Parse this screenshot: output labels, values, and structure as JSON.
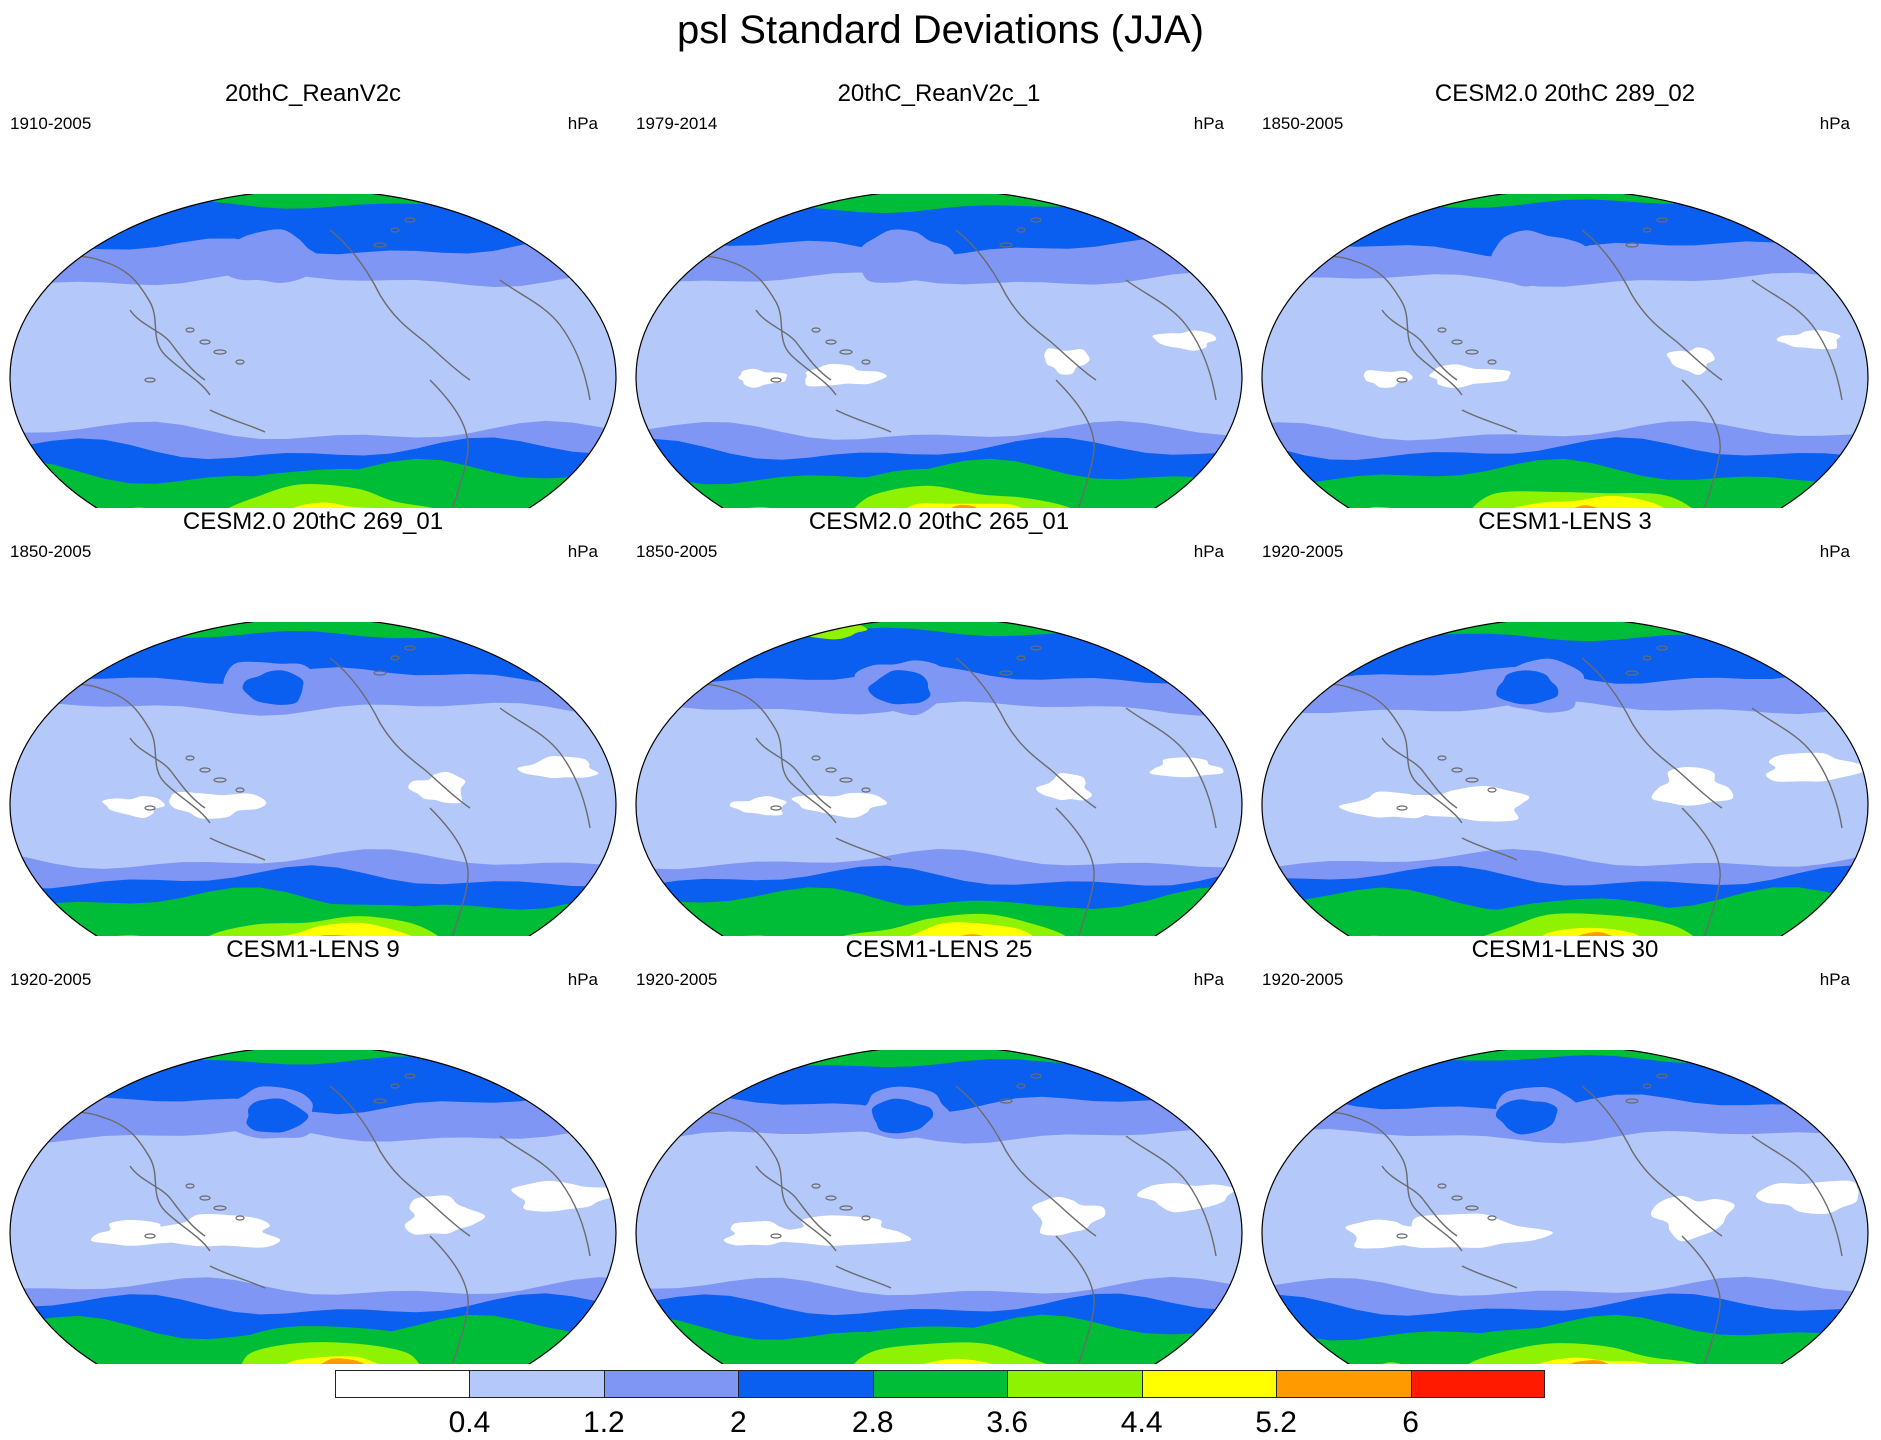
{
  "title": "psl Standard Deviations (JJA)",
  "colors": [
    "#ffffff",
    "#b4c8fa",
    "#7f96f5",
    "#0a5ef0",
    "#00bd38",
    "#8ef200",
    "#ffff00",
    "#ff9b00",
    "#ff1a00"
  ],
  "colorbar": {
    "labels": [
      "0.4",
      "1.2",
      "2",
      "2.8",
      "3.6",
      "4.4",
      "5.2",
      "6"
    ]
  },
  "panels": [
    {
      "title": "20thC_ReanV2c",
      "period": "1910-2005",
      "units": "hPa",
      "scenario": "rean1"
    },
    {
      "title": "20thC_ReanV2c_1",
      "period": "1979-2014",
      "units": "hPa",
      "scenario": "rean2"
    },
    {
      "title": "CESM2.0 20thC 289_02",
      "period": "1850-2005",
      "units": "hPa",
      "scenario": "cesm2a"
    },
    {
      "title": "CESM2.0 20thC 269_01",
      "period": "1850-2005",
      "units": "hPa",
      "scenario": "cesm2b"
    },
    {
      "title": "CESM2.0 20thC 265_01",
      "period": "1850-2005",
      "units": "hPa",
      "scenario": "cesm2c"
    },
    {
      "title": "CESM1-LENS 3",
      "period": "1920-2005",
      "units": "hPa",
      "scenario": "lens3"
    },
    {
      "title": "CESM1-LENS 9",
      "period": "1920-2005",
      "units": "hPa",
      "scenario": "lens9"
    },
    {
      "title": "CESM1-LENS 25",
      "period": "1920-2005",
      "units": "hPa",
      "scenario": "lens25"
    },
    {
      "title": "CESM1-LENS 30",
      "period": "1920-2005",
      "units": "hPa",
      "scenario": "lens30"
    }
  ]
}
